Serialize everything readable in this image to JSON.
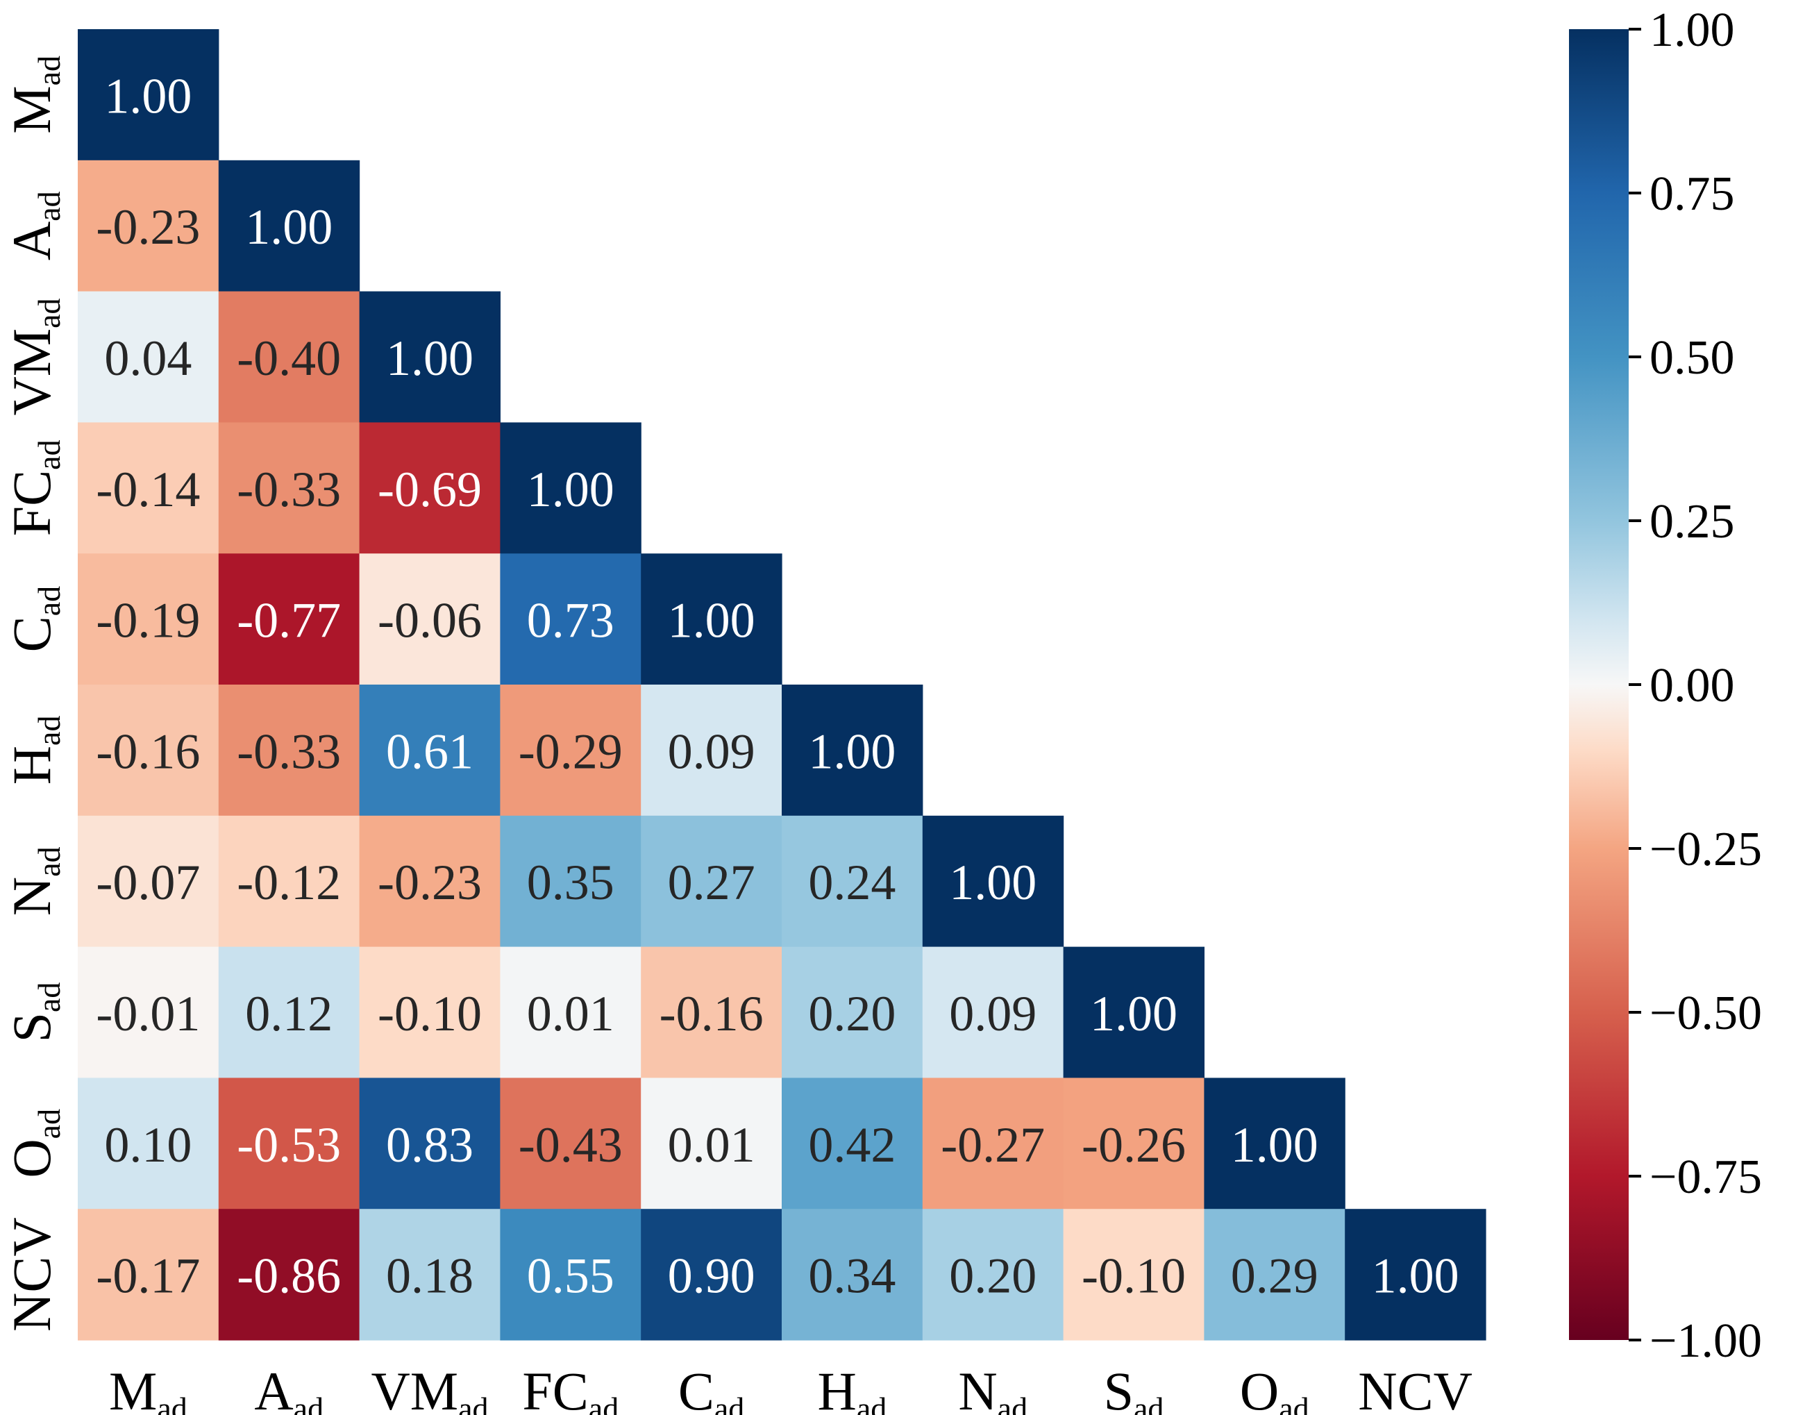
{
  "chart_data": {
    "type": "heatmap",
    "title": "",
    "variables": [
      {
        "base": "M",
        "sub": "ad"
      },
      {
        "base": "A",
        "sub": "ad"
      },
      {
        "base": "VM",
        "sub": "ad"
      },
      {
        "base": "FC",
        "sub": "ad"
      },
      {
        "base": "C",
        "sub": "ad"
      },
      {
        "base": "H",
        "sub": "ad"
      },
      {
        "base": "N",
        "sub": "ad"
      },
      {
        "base": "S",
        "sub": "ad"
      },
      {
        "base": "O",
        "sub": "ad"
      },
      {
        "base": "NCV",
        "sub": ""
      }
    ],
    "matrix_lower_triangle": [
      [
        1.0
      ],
      [
        -0.23,
        1.0
      ],
      [
        0.04,
        -0.4,
        1.0
      ],
      [
        -0.14,
        -0.33,
        -0.69,
        1.0
      ],
      [
        -0.19,
        -0.77,
        -0.06,
        0.73,
        1.0
      ],
      [
        -0.16,
        -0.33,
        0.61,
        -0.29,
        0.09,
        1.0
      ],
      [
        -0.07,
        -0.12,
        -0.23,
        0.35,
        0.27,
        0.24,
        1.0
      ],
      [
        -0.01,
        0.12,
        -0.1,
        0.01,
        -0.16,
        0.2,
        0.09,
        1.0
      ],
      [
        0.1,
        -0.53,
        0.83,
        -0.43,
        0.01,
        0.42,
        -0.27,
        -0.26,
        1.0
      ],
      [
        -0.17,
        -0.86,
        0.18,
        0.55,
        0.9,
        0.34,
        0.2,
        -0.1,
        0.29,
        1.0
      ]
    ],
    "value_format_decimals": 2,
    "colormap": "RdBu",
    "vmin": -1.0,
    "vmax": 1.0,
    "colorbar": {
      "ticks": [
        1.0,
        0.75,
        0.5,
        0.25,
        0.0,
        -0.25,
        -0.5,
        -0.75,
        -1.0
      ],
      "tick_labels": [
        "1.00",
        "0.75",
        "0.50",
        "0.25",
        "0.00",
        "−0.25",
        "−0.50",
        "−0.75",
        "−1.00"
      ],
      "placement": "right"
    },
    "colormap_stops": [
      {
        "v": -1.0,
        "color": "#67001f"
      },
      {
        "v": -0.75,
        "color": "#b2182b"
      },
      {
        "v": -0.5,
        "color": "#d6604d"
      },
      {
        "v": -0.25,
        "color": "#f4a582"
      },
      {
        "v": -0.1,
        "color": "#fddbc7"
      },
      {
        "v": 0.0,
        "color": "#f7f7f7"
      },
      {
        "v": 0.1,
        "color": "#d1e5f0"
      },
      {
        "v": 0.25,
        "color": "#92c5de"
      },
      {
        "v": 0.5,
        "color": "#4393c3"
      },
      {
        "v": 0.75,
        "color": "#2166ac"
      },
      {
        "v": 1.0,
        "color": "#053061"
      }
    ]
  }
}
